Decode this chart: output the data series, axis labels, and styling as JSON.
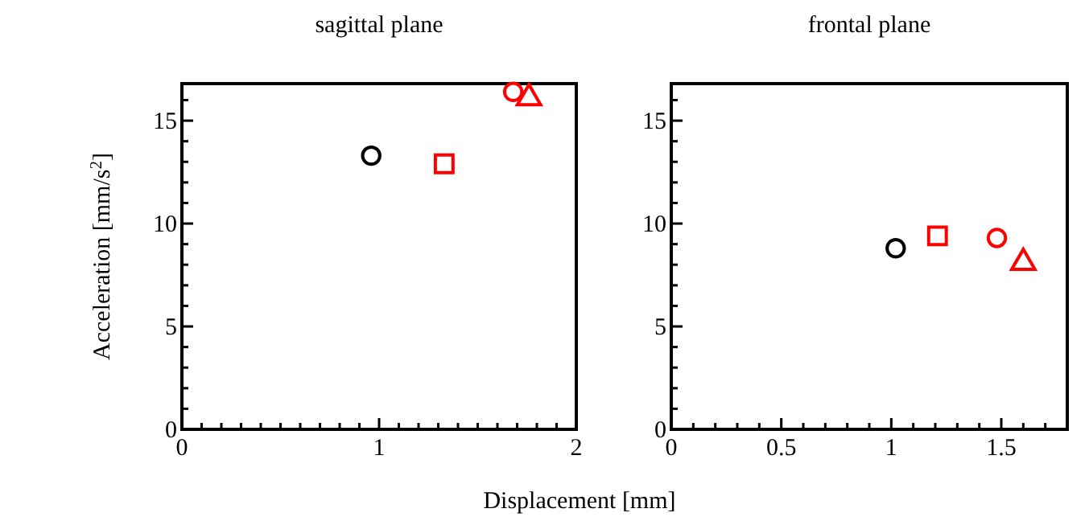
{
  "chart_data": [
    {
      "type": "scatter",
      "title": "sagittal plane",
      "ylabel": "Acceleration [mm/s$^{2}$]",
      "xlabel": "Displacement [mm]",
      "xlim": [
        0,
        2
      ],
      "ylim": [
        0,
        16.8
      ],
      "xticks": [
        0,
        {
          "value": 0.1,
          "label": null
        },
        {
          "value": 0.2,
          "label": null
        },
        {
          "value": 0.3,
          "label": null
        },
        {
          "value": 0.4,
          "label": null
        },
        {
          "value": 0.5,
          "label": null
        },
        {
          "value": 0.6,
          "label": null
        },
        {
          "value": 0.7,
          "label": null
        },
        {
          "value": 0.8,
          "label": null
        },
        {
          "value": 0.9,
          "label": null
        },
        1,
        {
          "value": 1.1,
          "label": null
        },
        {
          "value": 1.2,
          "label": null
        },
        {
          "value": 1.3,
          "label": null
        },
        {
          "value": 1.4,
          "label": null
        },
        {
          "value": 1.5,
          "label": null
        },
        {
          "value": 1.6,
          "label": null
        },
        {
          "value": 1.7,
          "label": null
        },
        {
          "value": 1.8,
          "label": null
        },
        {
          "value": 1.9,
          "label": null
        },
        2
      ],
      "yticks": [
        0,
        {
          "value": 1,
          "label": null
        },
        {
          "value": 2,
          "label": null
        },
        {
          "value": 3,
          "label": null
        },
        {
          "value": 4,
          "label": null
        },
        5,
        {
          "value": 6,
          "label": null
        },
        {
          "value": 7,
          "label": null
        },
        {
          "value": 8,
          "label": null
        },
        {
          "value": 9,
          "label": null
        },
        10,
        {
          "value": 11,
          "label": null
        },
        {
          "value": 12,
          "label": null
        },
        {
          "value": 13,
          "label": null
        },
        {
          "value": 14,
          "label": null
        },
        15,
        {
          "value": 16,
          "label": null
        }
      ],
      "grid": false,
      "series": [
        {
          "color": "#000000",
          "marker": "circle",
          "x": [
            0.96
          ],
          "values": [
            13.3
          ]
        },
        {
          "color": "#ff0000",
          "marker": "square",
          "x": [
            1.33
          ],
          "values": [
            12.9
          ]
        },
        {
          "color": "#ff0000",
          "marker": "circle",
          "x": [
            1.68
          ],
          "values": [
            16.4
          ]
        },
        {
          "color": "#ff0000",
          "marker": "triangle",
          "x": [
            1.76
          ],
          "values": [
            16.1
          ]
        }
      ]
    },
    {
      "type": "scatter",
      "title": "frontal plane",
      "xlim": [
        0,
        1.8
      ],
      "ylim": [
        0,
        16.8
      ],
      "xticks": [
        0,
        {
          "value": 0.1,
          "label": null
        },
        {
          "value": 0.2,
          "label": null
        },
        {
          "value": 0.3,
          "label": null
        },
        {
          "value": 0.4,
          "label": null
        },
        0.5,
        {
          "value": 0.6,
          "label": null
        },
        {
          "value": 0.7,
          "label": null
        },
        {
          "value": 0.8,
          "label": null
        },
        {
          "value": 0.9,
          "label": null
        },
        1,
        {
          "value": 1.1,
          "label": null
        },
        {
          "value": 1.2,
          "label": null
        },
        {
          "value": 1.3,
          "label": null
        },
        {
          "value": 1.4,
          "label": null
        },
        1.5,
        {
          "value": 1.6,
          "label": null
        },
        {
          "value": 1.7,
          "label": null
        }
      ],
      "yticks": [
        0,
        {
          "value": 1,
          "label": null
        },
        {
          "value": 2,
          "label": null
        },
        {
          "value": 3,
          "label": null
        },
        {
          "value": 4,
          "label": null
        },
        5,
        {
          "value": 6,
          "label": null
        },
        {
          "value": 7,
          "label": null
        },
        {
          "value": 8,
          "label": null
        },
        {
          "value": 9,
          "label": null
        },
        10,
        {
          "value": 11,
          "label": null
        },
        {
          "value": 12,
          "label": null
        },
        {
          "value": 13,
          "label": null
        },
        {
          "value": 14,
          "label": null
        },
        15,
        {
          "value": 16,
          "label": null
        }
      ],
      "grid": false,
      "series": [
        {
          "color": "#000000",
          "marker": "circle",
          "x": [
            1.02
          ],
          "values": [
            8.8
          ]
        },
        {
          "color": "#ff0000",
          "marker": "square",
          "x": [
            1.21
          ],
          "values": [
            9.4
          ]
        },
        {
          "color": "#ff0000",
          "marker": "circle",
          "x": [
            1.48
          ],
          "values": [
            9.3
          ]
        },
        {
          "color": "#ff0000",
          "marker": "triangle",
          "x": [
            1.6
          ],
          "values": [
            8.1
          ]
        }
      ]
    }
  ]
}
